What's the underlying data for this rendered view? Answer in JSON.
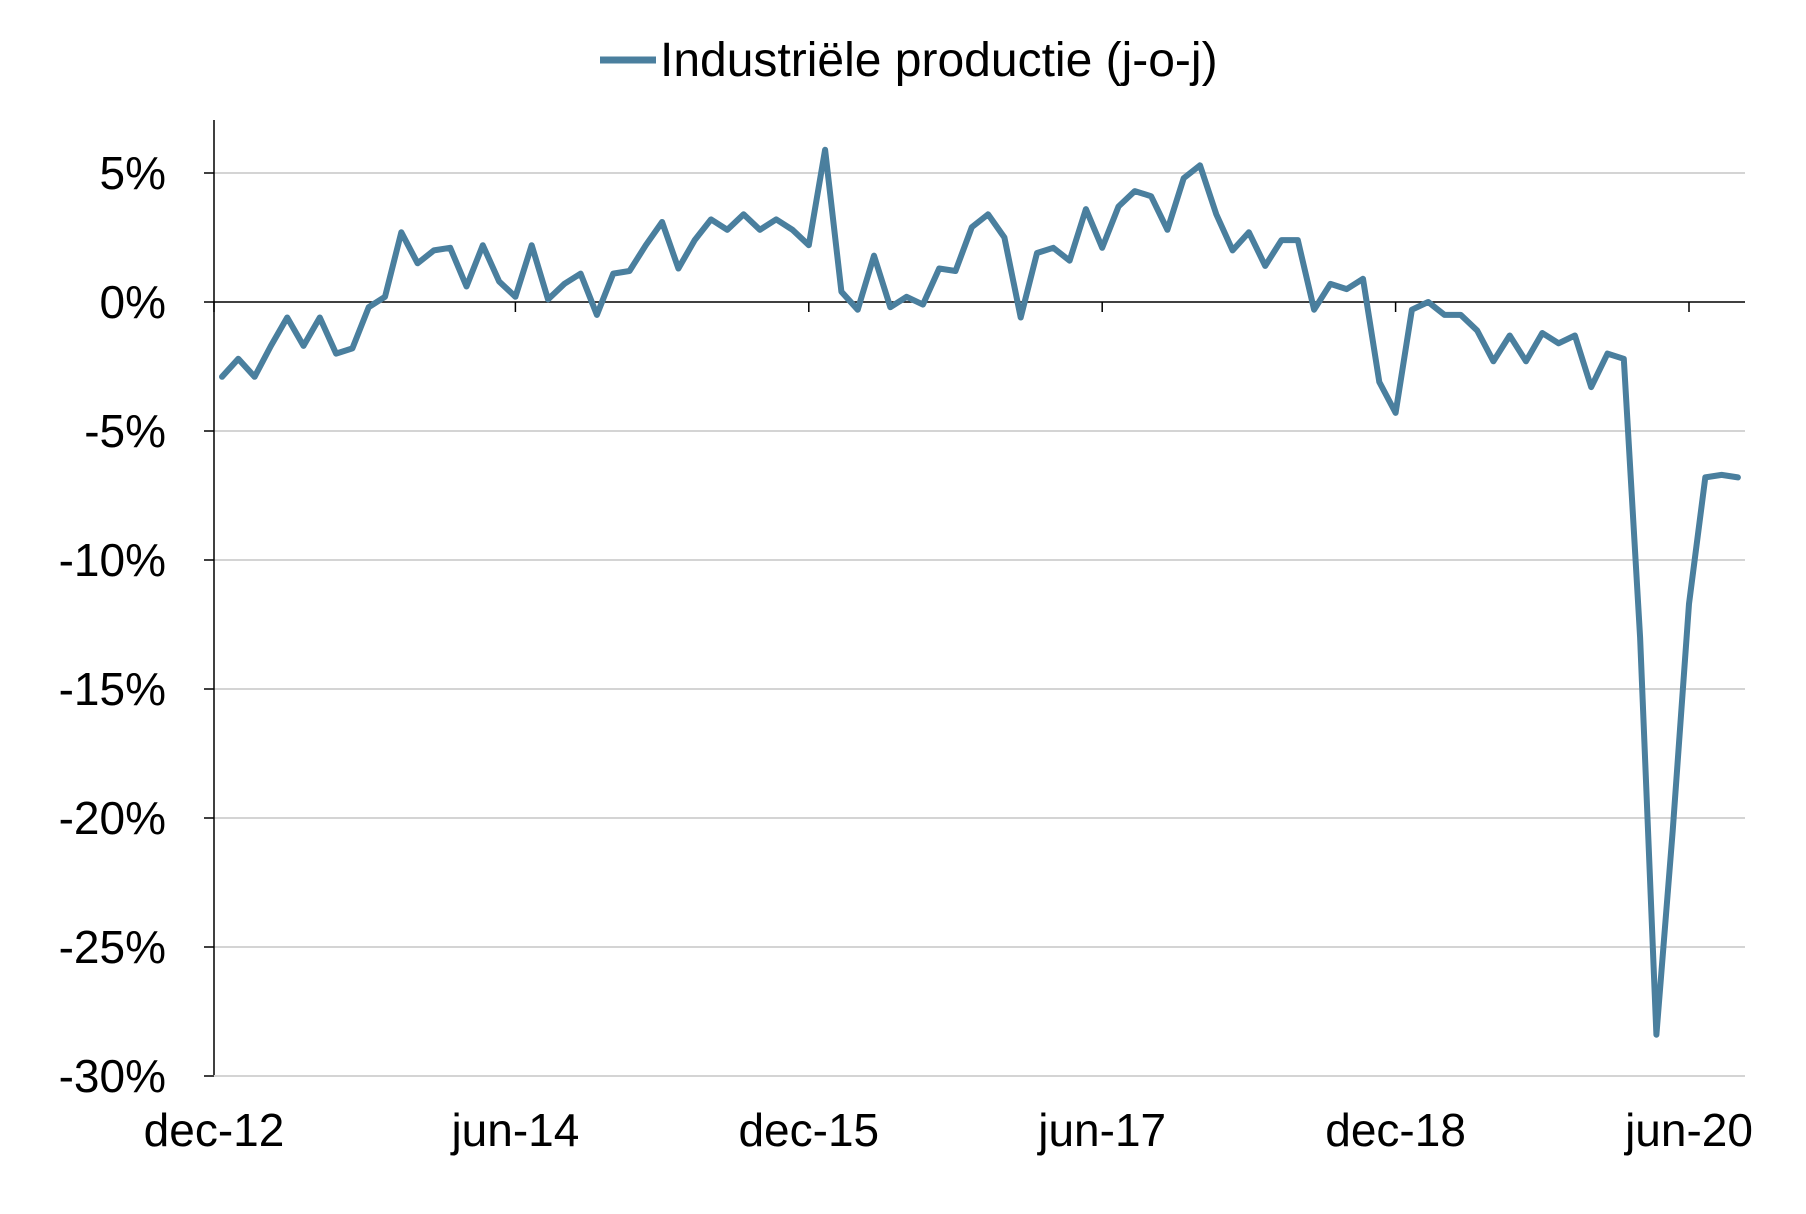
{
  "chart_data": {
    "type": "line",
    "legend": {
      "placement": "top-center"
    },
    "grid": true,
    "ylim": [
      -30,
      5
    ],
    "yticks": [
      5,
      0,
      -5,
      -10,
      -15,
      -20,
      -25,
      -30
    ],
    "ytick_labels": [
      "5%",
      "0%",
      "-5%",
      "-10%",
      "-15%",
      "-20%",
      "-25%",
      "-30%"
    ],
    "x_start": "dec-12",
    "x_end": "aug-20",
    "xticks": [
      {
        "index": 0,
        "label": "dec-12"
      },
      {
        "index": 18,
        "label": "jun-14"
      },
      {
        "index": 36,
        "label": "dec-15"
      },
      {
        "index": 54,
        "label": "jun-17"
      },
      {
        "index": 72,
        "label": "dec-18"
      },
      {
        "index": 90,
        "label": "jun-20"
      }
    ],
    "series": [
      {
        "name": "Industriële productie (j-o-j)",
        "color": "#4a7f9e",
        "values": [
          -2.9,
          -2.2,
          -2.9,
          -1.7,
          -0.6,
          -1.7,
          -0.6,
          -2.0,
          -1.8,
          -0.2,
          0.2,
          2.7,
          1.5,
          2.0,
          2.1,
          0.6,
          2.2,
          0.8,
          0.2,
          2.2,
          0.1,
          0.7,
          1.1,
          -0.5,
          1.1,
          1.2,
          2.2,
          3.1,
          1.3,
          2.4,
          3.2,
          2.8,
          3.4,
          2.8,
          3.2,
          2.8,
          2.2,
          5.9,
          0.4,
          -0.3,
          1.8,
          -0.2,
          0.2,
          -0.1,
          1.3,
          1.2,
          2.9,
          3.4,
          2.5,
          -0.6,
          1.9,
          2.1,
          1.6,
          3.6,
          2.1,
          3.7,
          4.3,
          4.1,
          2.8,
          4.8,
          5.3,
          3.4,
          2.0,
          2.7,
          1.4,
          2.4,
          2.4,
          -0.3,
          0.7,
          0.5,
          0.9,
          -3.1,
          -4.3,
          -0.3,
          0.0,
          -0.5,
          -0.5,
          -1.1,
          -2.3,
          -1.3,
          -2.3,
          -1.2,
          -1.6,
          -1.3,
          -3.3,
          -2.0,
          -2.2,
          -13.0,
          -28.4,
          -20.5,
          -11.7,
          -6.8,
          -6.7,
          -6.8
        ]
      }
    ]
  }
}
